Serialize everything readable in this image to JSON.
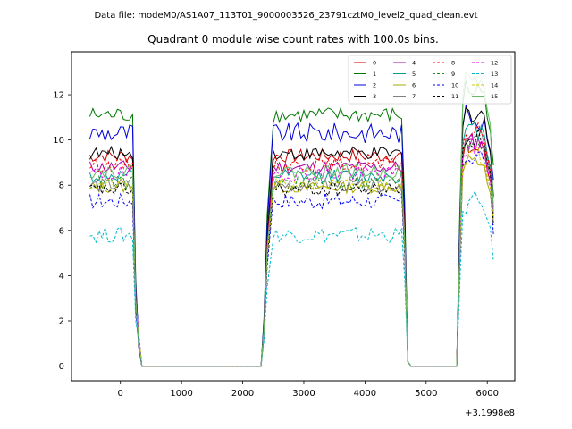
{
  "chart_data": {
    "type": "line",
    "suptitle": "Data file: modeM0/AS1A07_113T01_9000003526_23791cztM0_level2_quad_clean.evt",
    "title": "Quadrant 0 module wise count rates with 100.0s bins.",
    "x_offset_label": "+3.1998e8",
    "xlim": [
      -800,
      6450
    ],
    "ylim": [
      -0.65,
      13.9
    ],
    "xticks": [
      0,
      1000,
      2000,
      3000,
      4000,
      5000,
      6000
    ],
    "yticks": [
      0,
      2,
      4,
      6,
      8,
      10,
      12
    ],
    "xtick_labels": [
      "0",
      "1000",
      "2000",
      "3000",
      "4000",
      "5000",
      "6000"
    ],
    "ytick_labels": [
      "0",
      "2",
      "4",
      "6",
      "8",
      "10",
      "12"
    ],
    "legend_position": "top-right",
    "legend_columns": 4,
    "segments": [
      {
        "x0": -500,
        "x1": 200,
        "rise": [],
        "fall": [
          250,
          300
        ]
      },
      {
        "x0": 2500,
        "x1": 4600,
        "rise": [
          2300,
          2400
        ],
        "fall": [
          4650,
          4700
        ]
      },
      {
        "x0": 5600,
        "x1": 6100,
        "rise": [
          5500,
          5550
        ],
        "fall": []
      }
    ],
    "zero_ranges": [
      [
        350,
        2300
      ],
      [
        4750,
        5500
      ]
    ],
    "series": [
      {
        "name": "0",
        "color": "#cc0000",
        "dash": false,
        "level": 9.3,
        "amp": 0.3,
        "end": 9.6
      },
      {
        "name": "1",
        "color": "#007700",
        "dash": false,
        "level": 11.1,
        "amp": 0.35,
        "end": 12.2
      },
      {
        "name": "2",
        "color": "#0000dd",
        "dash": false,
        "level": 10.3,
        "amp": 0.45,
        "end": 11.1
      },
      {
        "name": "3",
        "color": "#000000",
        "dash": false,
        "level": 9.4,
        "amp": 0.3,
        "end": 11.2
      },
      {
        "name": "4",
        "color": "#aa00aa",
        "dash": false,
        "level": 8.8,
        "amp": 0.3,
        "end": 9.9
      },
      {
        "name": "5",
        "color": "#00a090",
        "dash": false,
        "level": 8.4,
        "amp": 0.3,
        "end": 10.4
      },
      {
        "name": "6",
        "color": "#aaaa00",
        "dash": false,
        "level": 7.9,
        "amp": 0.25,
        "end": 9.0
      },
      {
        "name": "7",
        "color": "#808080",
        "dash": false,
        "level": 8.0,
        "amp": 0.3,
        "end": 10.0
      },
      {
        "name": "8",
        "color": "#ff0000",
        "dash": true,
        "level": 8.9,
        "amp": 0.3,
        "end": 10.3
      },
      {
        "name": "9",
        "color": "#228b22",
        "dash": true,
        "level": 8.1,
        "amp": 0.3,
        "end": 10.0
      },
      {
        "name": "10",
        "color": "#0000ff",
        "dash": true,
        "level": 7.3,
        "amp": 0.35,
        "end": 9.3
      },
      {
        "name": "11",
        "color": "#000000",
        "dash": true,
        "level": 7.8,
        "amp": 0.3,
        "end": 10.1
      },
      {
        "name": "12",
        "color": "#ee00ee",
        "dash": true,
        "level": 8.5,
        "amp": 0.35,
        "end": 9.7
      },
      {
        "name": "13",
        "color": "#00bbcc",
        "dash": true,
        "level": 5.8,
        "amp": 0.35,
        "end": 7.2
      },
      {
        "name": "14",
        "color": "#cccc00",
        "dash": true,
        "level": 8.0,
        "amp": 0.3,
        "end": 9.3
      },
      {
        "name": "15",
        "color": "#66bb66",
        "dash": false,
        "level": 8.6,
        "amp": 0.3,
        "end": 12.6
      }
    ]
  }
}
